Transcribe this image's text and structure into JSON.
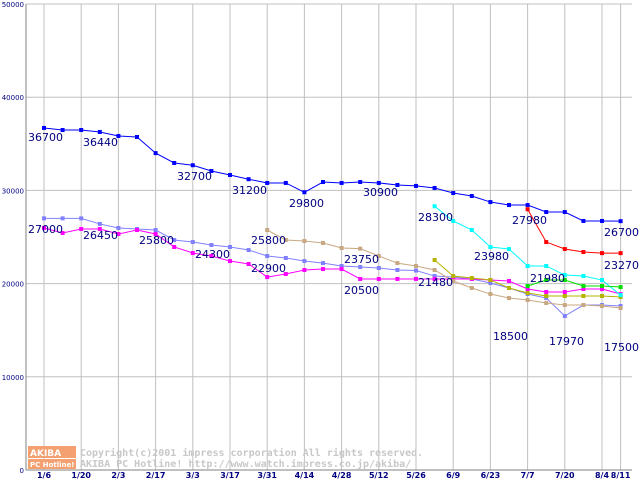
{
  "chart_data": {
    "type": "line",
    "title": "",
    "xlabel": "",
    "ylabel": "",
    "ylim": [
      0,
      50000
    ],
    "yticks": [
      "0",
      "10000",
      "20000",
      "30000",
      "40000",
      "50000"
    ],
    "ytick_values": [
      0,
      10000,
      20000,
      30000,
      40000,
      50000
    ],
    "x_weeks": 32,
    "xticks": [
      {
        "label": "1/6",
        "week": 0
      },
      {
        "label": "1/20",
        "week": 2
      },
      {
        "label": "2/3",
        "week": 4
      },
      {
        "label": "2/17",
        "week": 6
      },
      {
        "label": "3/3",
        "week": 8
      },
      {
        "label": "3/17",
        "week": 10
      },
      {
        "label": "3/31",
        "week": 12
      },
      {
        "label": "4/14",
        "week": 14
      },
      {
        "label": "4/28",
        "week": 16
      },
      {
        "label": "5/12",
        "week": 18
      },
      {
        "label": "5/26",
        "week": 20
      },
      {
        "label": "6/9",
        "week": 22
      },
      {
        "label": "6/23",
        "week": 24
      },
      {
        "label": "7/7",
        "week": 26
      },
      {
        "label": "7/20",
        "week": 28
      },
      {
        "label": "8/4",
        "week": 30
      },
      {
        "label": "8/11",
        "week": 31
      }
    ],
    "grid": true,
    "series": [
      {
        "name": "blue",
        "color": "#0000ff",
        "start": 0,
        "values": [
          36700,
          36480,
          36480,
          36270,
          35840,
          35730,
          34000,
          32940,
          32700,
          32080,
          31650,
          31200,
          30800,
          30800,
          29800,
          30900,
          30800,
          30900,
          30800,
          30580,
          30480,
          30260,
          29720,
          29400,
          28750,
          28430,
          28430,
          27680,
          27680,
          26720,
          26720,
          26700
        ]
      },
      {
        "name": "periwinkle",
        "color": "#8080ff",
        "start": 0,
        "values": [
          27000,
          27000,
          27000,
          26400,
          25970,
          25860,
          25750,
          24680,
          24460,
          24140,
          23930,
          23600,
          22960,
          22750,
          22420,
          22200,
          21890,
          21780,
          21670,
          21460,
          21400,
          20810,
          20700,
          20490,
          20060,
          19530,
          18880,
          18450,
          16520,
          17700,
          17700,
          17600
        ]
      },
      {
        "name": "magenta",
        "color": "#ff00ff",
        "start": 0,
        "values": [
          25970,
          25430,
          25860,
          25860,
          25320,
          25750,
          25320,
          23930,
          23280,
          22960,
          22420,
          22100,
          20700,
          21030,
          21460,
          21560,
          21560,
          20500,
          20500,
          20500,
          20500,
          20500,
          20500,
          20500,
          20380,
          20280,
          19420,
          19100,
          19100,
          19420,
          19420,
          18880
        ]
      },
      {
        "name": "tan",
        "color": "#c8a882",
        "start": 12,
        "values": [
          25750,
          24680,
          24570,
          24360,
          23820,
          23750,
          22960,
          22200,
          21890,
          21460,
          20280,
          19530,
          18880,
          18450,
          18240,
          17920,
          17700,
          17700,
          17600,
          17380
        ]
      },
      {
        "name": "olive",
        "color": "#b4b400",
        "start": 21,
        "values": [
          22530,
          20810,
          20600,
          20390,
          19530,
          18990,
          18670,
          18670,
          18670,
          18670,
          18560
        ]
      },
      {
        "name": "cyan",
        "color": "#00ffff",
        "start": 21,
        "values": [
          28300,
          26720,
          25750,
          23930,
          23710,
          21890,
          21890,
          20920,
          20810,
          20380,
          18770
        ]
      },
      {
        "name": "red",
        "color": "#ff0000",
        "start": 26,
        "values": [
          27980,
          24460,
          23710,
          23390,
          23270,
          23270
        ]
      },
      {
        "name": "green",
        "color": "#00e000",
        "start": 26,
        "values": [
          19740,
          20390,
          20390,
          19740,
          19740,
          19630
        ]
      }
    ],
    "annotations": [
      "36700",
      "36440",
      "32700",
      "31200",
      "29800",
      "30900",
      "28300",
      "27980",
      "26700",
      "23270",
      "23980",
      "21980",
      "21480",
      "23750",
      "20500",
      "18500",
      "17970",
      "17500",
      "27000",
      "26450",
      "25800",
      "24300",
      "22900",
      "25800"
    ]
  },
  "watermark": {
    "logo_top": "AKIBA",
    "logo_bottom": "PC Hotline!",
    "line1": "Copyright(c)2001 impress corporation All rights reserved.",
    "line2": "AKIBA PC Hotline!  http://www.watch.impress.co.jp/akiba/"
  }
}
